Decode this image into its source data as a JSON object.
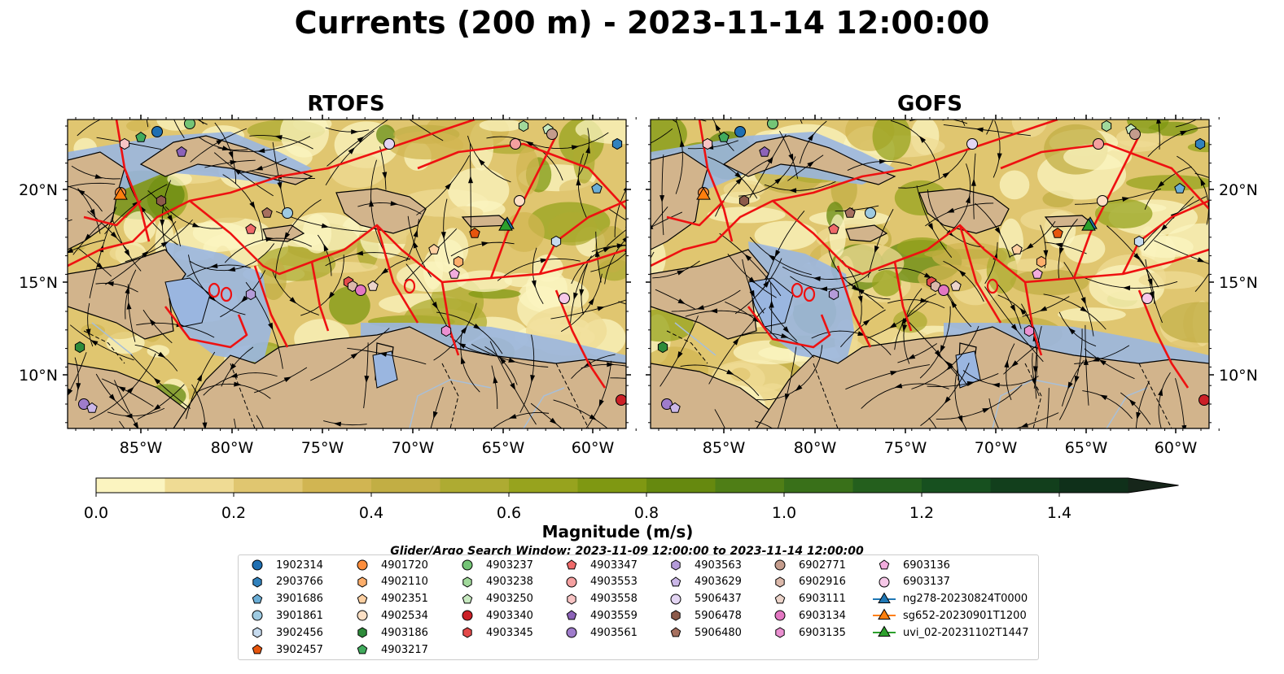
{
  "title": "Currents (200 m) - 2023-11-14 12:00:00",
  "panels": [
    {
      "title": "RTOFS"
    },
    {
      "title": "GOFS"
    }
  ],
  "axes": {
    "lon_ticks": [
      "85°W",
      "80°W",
      "75°W",
      "70°W",
      "65°W",
      "60°W"
    ],
    "lat_ticks": [
      "20°N",
      "15°N",
      "10°N"
    ]
  },
  "colorbar": {
    "label": "Magnitude (m/s)",
    "tick_labels": [
      "0.0",
      "0.2",
      "0.4",
      "0.6",
      "0.8",
      "1.0",
      "1.2",
      "1.4"
    ],
    "colors": [
      "#fbf4c0",
      "#efdb94",
      "#e0c670",
      "#d1b552",
      "#c2ae44",
      "#aeab32",
      "#97a31e",
      "#7f9812",
      "#66890f",
      "#4f7e16",
      "#397019",
      "#245f1d",
      "#17501f",
      "#123f1c",
      "#0f301a",
      "#16261a"
    ]
  },
  "search_window": "Glider/Argo Search Window: 2023-11-09 12:00:00 to 2023-11-14 12:00:00",
  "legend": [
    {
      "label": "1902314",
      "color": "#1f6fb2",
      "marker": "circle"
    },
    {
      "label": "2903766",
      "color": "#3182bd",
      "marker": "hexagon"
    },
    {
      "label": "3901686",
      "color": "#6baed6",
      "marker": "pentagon"
    },
    {
      "label": "3901861",
      "color": "#9ecae1",
      "marker": "circle"
    },
    {
      "label": "3902456",
      "color": "#c6dbef",
      "marker": "hexagon"
    },
    {
      "label": "3902457",
      "color": "#e6550d",
      "marker": "pentagon"
    },
    {
      "label": "4901720",
      "color": "#fd8d3c",
      "marker": "circle"
    },
    {
      "label": "4902110",
      "color": "#fdae6b",
      "marker": "hexagon"
    },
    {
      "label": "4902351",
      "color": "#fdd0a2",
      "marker": "pentagon"
    },
    {
      "label": "4902534",
      "color": "#fde0c5",
      "marker": "circle"
    },
    {
      "label": "4903186",
      "color": "#2e8b3a",
      "marker": "hexagon"
    },
    {
      "label": "4903217",
      "color": "#41ab5d",
      "marker": "pentagon"
    },
    {
      "label": "4903237",
      "color": "#74c476",
      "marker": "circle"
    },
    {
      "label": "4903238",
      "color": "#a1d99b",
      "marker": "hexagon"
    },
    {
      "label": "4903250",
      "color": "#c7e9c0",
      "marker": "pentagon"
    },
    {
      "label": "4903340",
      "color": "#cb2027",
      "marker": "circle"
    },
    {
      "label": "4903345",
      "color": "#e34a4a",
      "marker": "hexagon"
    },
    {
      "label": "4903347",
      "color": "#ef6a6a",
      "marker": "pentagon"
    },
    {
      "label": "4903553",
      "color": "#f4a0a0",
      "marker": "circle"
    },
    {
      "label": "4903558",
      "color": "#f8c4c4",
      "marker": "hexagon"
    },
    {
      "label": "4903559",
      "color": "#8c63b8",
      "marker": "pentagon"
    },
    {
      "label": "4903561",
      "color": "#9f7ccb",
      "marker": "circle"
    },
    {
      "label": "4903563",
      "color": "#b49bd9",
      "marker": "hexagon"
    },
    {
      "label": "4903629",
      "color": "#cbb7e8",
      "marker": "pentagon"
    },
    {
      "label": "5906437",
      "color": "#e3d5f3",
      "marker": "circle"
    },
    {
      "label": "5906478",
      "color": "#8c5a4a",
      "marker": "hexagon"
    },
    {
      "label": "5906480",
      "color": "#a6705f",
      "marker": "pentagon"
    },
    {
      "label": "6902771",
      "color": "#c49c8c",
      "marker": "circle"
    },
    {
      "label": "6902916",
      "color": "#dbb8aa",
      "marker": "hexagon"
    },
    {
      "label": "6903111",
      "color": "#ecd4ca",
      "marker": "pentagon"
    },
    {
      "label": "6903134",
      "color": "#e377c2",
      "marker": "circle"
    },
    {
      "label": "6903135",
      "color": "#eb90d1",
      "marker": "hexagon"
    },
    {
      "label": "6903136",
      "color": "#f2acdd",
      "marker": "pentagon"
    },
    {
      "label": "6903137",
      "color": "#f7c8e8",
      "marker": "circle"
    },
    {
      "label": "ng278-20230824T0000",
      "color": "#1f77b4",
      "marker": "triangle-line"
    },
    {
      "label": "sg652-20230901T1200",
      "color": "#ff7f0e",
      "marker": "triangle-line"
    },
    {
      "label": "uvi_02-20231102T1447",
      "color": "#2ca02c",
      "marker": "triangle-line"
    }
  ],
  "map_colors": {
    "land": "#d2b48c",
    "shelf": "#9ab6e0",
    "eez": "#ee1111",
    "river": "#a8bfd8"
  }
}
